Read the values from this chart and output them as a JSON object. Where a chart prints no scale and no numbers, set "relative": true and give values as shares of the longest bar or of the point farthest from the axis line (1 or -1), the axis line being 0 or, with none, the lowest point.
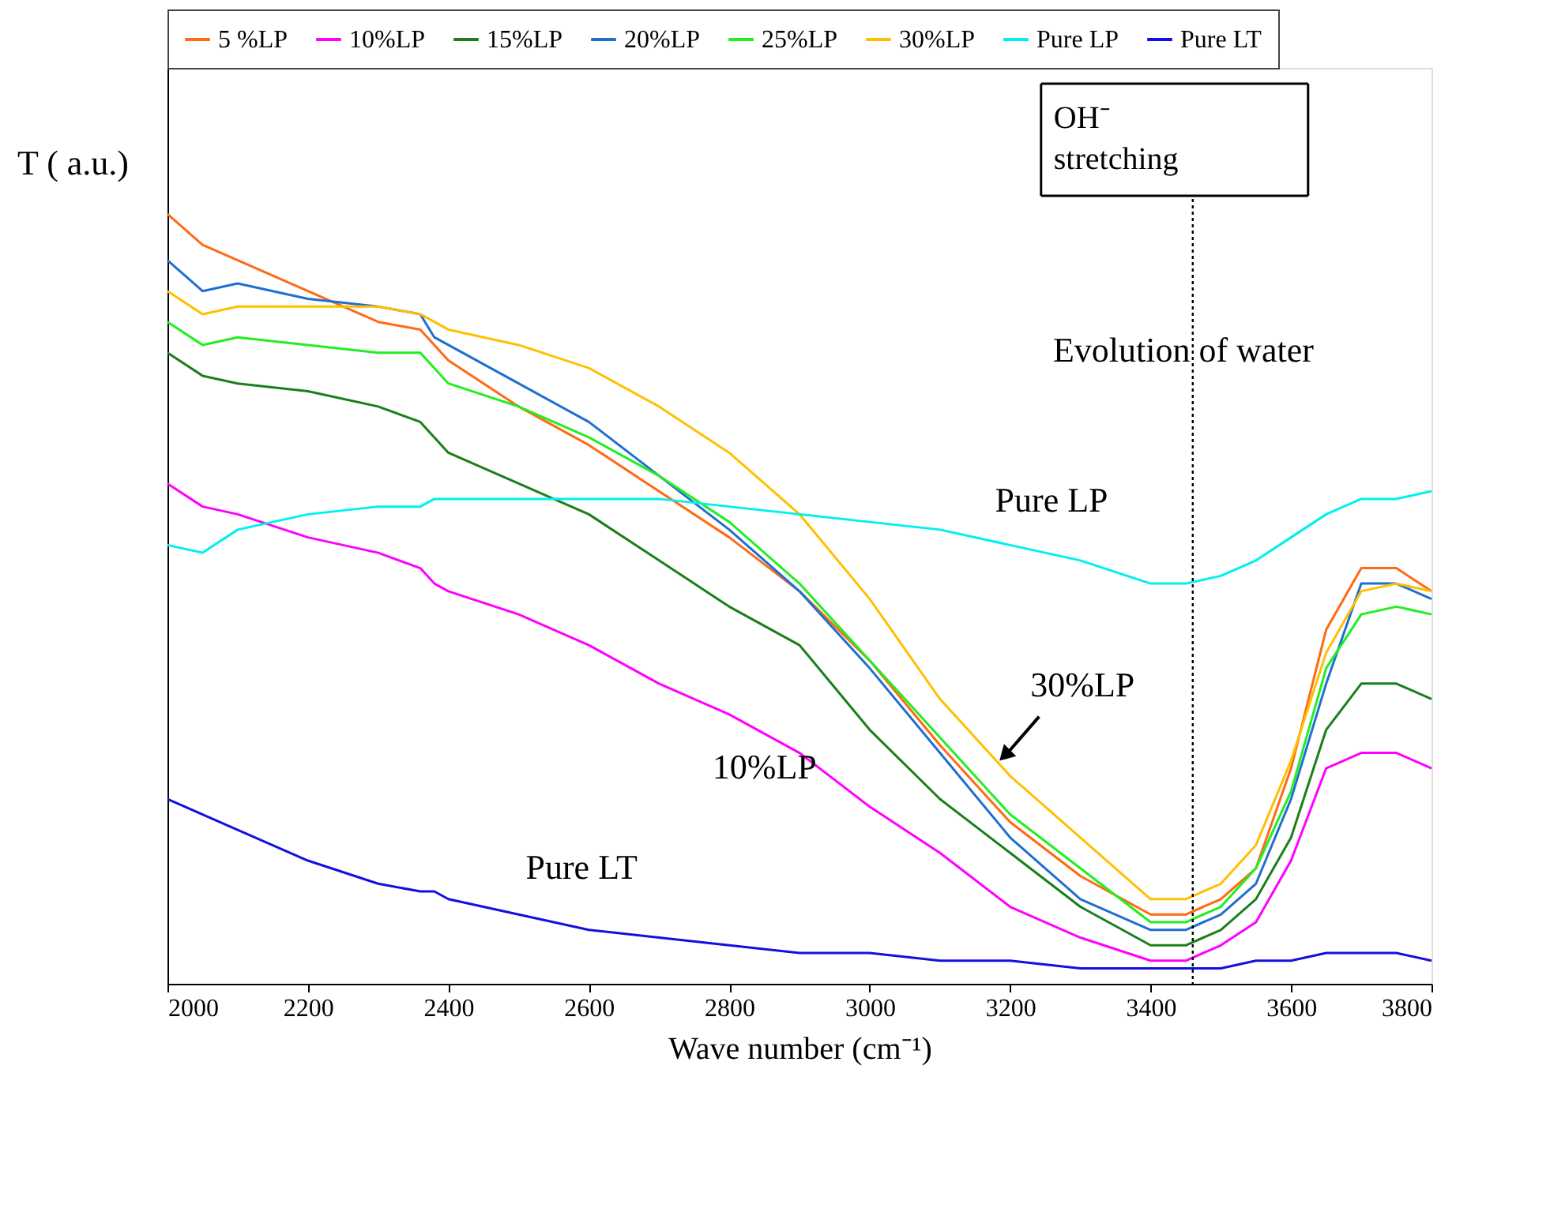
{
  "chart_data": {
    "type": "line",
    "relative": true,
    "xlabel": "Wave number (cm⁻¹)",
    "ylabel": "T ( a.u.)",
    "x": [
      2000,
      2050,
      2100,
      2200,
      2300,
      2360,
      2380,
      2400,
      2500,
      2600,
      2700,
      2800,
      2900,
      3000,
      3100,
      3200,
      3300,
      3400,
      3450,
      3500,
      3550,
      3600,
      3650,
      3700,
      3750,
      3800
    ],
    "xlim": [
      2000,
      3800
    ],
    "xticks": [
      2000,
      2200,
      2400,
      2600,
      2800,
      3000,
      3200,
      3400,
      3600,
      3800
    ],
    "tick_labels": "x",
    "grid": false,
    "legend": "top",
    "line_style": "solid",
    "series": [
      {
        "name": "5 %LP",
        "color": "#ff6a13",
        "values": [
          1.0,
          0.96,
          0.94,
          0.9,
          0.86,
          0.85,
          0.83,
          0.81,
          0.75,
          0.7,
          0.64,
          0.58,
          0.51,
          0.42,
          0.31,
          0.21,
          0.14,
          0.09,
          0.09,
          0.11,
          0.15,
          0.28,
          0.46,
          0.54,
          0.54,
          0.51
        ]
      },
      {
        "name": "10%LP",
        "color": "#ff00ff",
        "values": [
          0.65,
          0.62,
          0.61,
          0.58,
          0.56,
          0.54,
          0.52,
          0.51,
          0.48,
          0.44,
          0.39,
          0.35,
          0.3,
          0.23,
          0.17,
          0.1,
          0.06,
          0.03,
          0.03,
          0.05,
          0.08,
          0.16,
          0.28,
          0.3,
          0.3,
          0.28
        ]
      },
      {
        "name": "15%LP",
        "color": "#1a7f1a",
        "values": [
          0.82,
          0.79,
          0.78,
          0.77,
          0.75,
          0.73,
          0.71,
          0.69,
          0.65,
          0.61,
          0.55,
          0.49,
          0.44,
          0.33,
          0.24,
          0.17,
          0.1,
          0.05,
          0.05,
          0.07,
          0.11,
          0.19,
          0.33,
          0.39,
          0.39,
          0.37
        ]
      },
      {
        "name": "20%LP",
        "color": "#1f6fd0",
        "values": [
          0.94,
          0.9,
          0.91,
          0.89,
          0.88,
          0.87,
          0.84,
          0.83,
          0.78,
          0.73,
          0.66,
          0.59,
          0.51,
          0.41,
          0.3,
          0.19,
          0.11,
          0.07,
          0.07,
          0.09,
          0.13,
          0.24,
          0.39,
          0.52,
          0.52,
          0.5
        ]
      },
      {
        "name": "25%LP",
        "color": "#22ee22",
        "values": [
          0.86,
          0.83,
          0.84,
          0.83,
          0.82,
          0.82,
          0.8,
          0.78,
          0.75,
          0.71,
          0.66,
          0.6,
          0.52,
          0.42,
          0.32,
          0.22,
          0.15,
          0.08,
          0.08,
          0.1,
          0.15,
          0.25,
          0.41,
          0.48,
          0.49,
          0.48
        ]
      },
      {
        "name": "30%LP",
        "color": "#ffc000",
        "values": [
          0.9,
          0.87,
          0.88,
          0.88,
          0.88,
          0.87,
          0.86,
          0.85,
          0.83,
          0.8,
          0.75,
          0.69,
          0.61,
          0.5,
          0.37,
          0.27,
          0.19,
          0.11,
          0.11,
          0.13,
          0.18,
          0.29,
          0.43,
          0.51,
          0.52,
          0.51
        ]
      },
      {
        "name": "Pure LP",
        "color": "#00f0f0",
        "values": [
          0.57,
          0.56,
          0.59,
          0.61,
          0.62,
          0.62,
          0.63,
          0.63,
          0.63,
          0.63,
          0.63,
          0.62,
          0.61,
          0.6,
          0.59,
          0.57,
          0.55,
          0.52,
          0.52,
          0.53,
          0.55,
          0.58,
          0.61,
          0.63,
          0.63,
          0.64
        ]
      },
      {
        "name": "Pure LT",
        "color": "#1010e0",
        "values": [
          0.24,
          0.22,
          0.2,
          0.16,
          0.13,
          0.12,
          0.12,
          0.11,
          0.09,
          0.07,
          0.06,
          0.05,
          0.04,
          0.04,
          0.03,
          0.03,
          0.02,
          0.02,
          0.02,
          0.02,
          0.03,
          0.03,
          0.04,
          0.04,
          0.04,
          0.03
        ]
      }
    ],
    "ref_lines": [
      {
        "axis": "x",
        "value": 3460,
        "label": "OH⁻ stretching",
        "line_style": "dotted",
        "color": "#000000"
      }
    ],
    "annotations": [
      "Pure LP",
      "30%LP",
      "10%LP",
      "Pure LT",
      "Evolution of water"
    ]
  }
}
